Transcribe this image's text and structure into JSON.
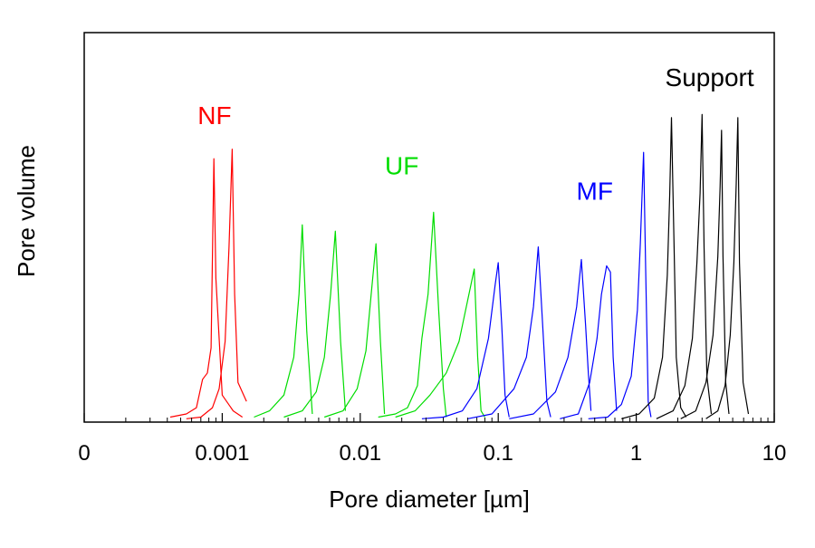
{
  "chart_data": {
    "type": "line",
    "title": "",
    "xlabel": "Pore diameter  [µm]",
    "ylabel": "Pore volume",
    "x_scale": "log",
    "xlim": [
      0.0001,
      10
    ],
    "ylim": [
      0,
      1
    ],
    "grid": false,
    "legend": "none",
    "x_ticks": [
      {
        "value": 0.0001,
        "label": "0"
      },
      {
        "value": 0.001,
        "label": "0.001"
      },
      {
        "value": 0.01,
        "label": "0.01"
      },
      {
        "value": 0.1,
        "label": "0.1"
      },
      {
        "value": 1,
        "label": "1"
      },
      {
        "value": 10,
        "label": "10"
      }
    ],
    "annotations": [
      {
        "text": "NF",
        "x": 0.00088,
        "y": 0.94,
        "color": "#ff0000"
      },
      {
        "text": "UF",
        "x": 0.02,
        "y": 0.78,
        "color": "#00dd00"
      },
      {
        "text": "MF",
        "x": 0.5,
        "y": 0.7,
        "color": "#0000ff"
      },
      {
        "text": "Support",
        "x": 3.4,
        "y": 1.06,
        "color": "#000000"
      }
    ],
    "series": [
      {
        "group": "NF",
        "color": "#ff0000",
        "points": [
          [
            0.00042,
            0.01
          ],
          [
            0.00055,
            0.02
          ],
          [
            0.00065,
            0.04
          ],
          [
            0.00072,
            0.13
          ],
          [
            0.00078,
            0.15
          ],
          [
            0.00083,
            0.23
          ],
          [
            0.00087,
            0.83
          ],
          [
            0.0009,
            0.45
          ],
          [
            0.001,
            0.08
          ],
          [
            0.0012,
            0.03
          ],
          [
            0.0014,
            0.01
          ]
        ]
      },
      {
        "group": "NF",
        "color": "#ff0000",
        "points": [
          [
            0.00055,
            0.005
          ],
          [
            0.0007,
            0.01
          ],
          [
            0.00085,
            0.04
          ],
          [
            0.00095,
            0.1
          ],
          [
            0.00105,
            0.25
          ],
          [
            0.00112,
            0.55
          ],
          [
            0.00118,
            0.86
          ],
          [
            0.00123,
            0.4
          ],
          [
            0.0013,
            0.12
          ],
          [
            0.0015,
            0.06
          ]
        ]
      },
      {
        "group": "UF",
        "color": "#00dd00",
        "points": [
          [
            0.0017,
            0.01
          ],
          [
            0.0022,
            0.03
          ],
          [
            0.0028,
            0.08
          ],
          [
            0.0033,
            0.2
          ],
          [
            0.0036,
            0.4
          ],
          [
            0.0038,
            0.62
          ],
          [
            0.0041,
            0.28
          ],
          [
            0.0045,
            0.02
          ]
        ]
      },
      {
        "group": "UF",
        "color": "#00dd00",
        "points": [
          [
            0.0028,
            0.01
          ],
          [
            0.0038,
            0.03
          ],
          [
            0.0048,
            0.09
          ],
          [
            0.0055,
            0.2
          ],
          [
            0.0061,
            0.4
          ],
          [
            0.0066,
            0.6
          ],
          [
            0.0072,
            0.25
          ],
          [
            0.0078,
            0.03
          ]
        ]
      },
      {
        "group": "UF",
        "color": "#00dd00",
        "points": [
          [
            0.0055,
            0.01
          ],
          [
            0.0075,
            0.03
          ],
          [
            0.0095,
            0.1
          ],
          [
            0.011,
            0.22
          ],
          [
            0.012,
            0.4
          ],
          [
            0.013,
            0.56
          ],
          [
            0.014,
            0.25
          ],
          [
            0.015,
            0.02
          ]
        ]
      },
      {
        "group": "UF",
        "color": "#00dd00",
        "points": [
          [
            0.0135,
            0.01
          ],
          [
            0.018,
            0.02
          ],
          [
            0.022,
            0.04
          ],
          [
            0.026,
            0.11
          ],
          [
            0.028,
            0.26
          ],
          [
            0.031,
            0.4
          ],
          [
            0.034,
            0.66
          ],
          [
            0.037,
            0.35
          ],
          [
            0.04,
            0.1
          ],
          [
            0.042,
            0.01
          ]
        ]
      },
      {
        "group": "UF",
        "color": "#00dd00",
        "points": [
          [
            0.018,
            0.01
          ],
          [
            0.025,
            0.03
          ],
          [
            0.032,
            0.08
          ],
          [
            0.042,
            0.15
          ],
          [
            0.052,
            0.25
          ],
          [
            0.06,
            0.38
          ],
          [
            0.067,
            0.48
          ],
          [
            0.071,
            0.2
          ],
          [
            0.075,
            0.03
          ],
          [
            0.08,
            0.01
          ]
        ]
      },
      {
        "group": "MF",
        "color": "#0000ff",
        "points": [
          [
            0.028,
            0.005
          ],
          [
            0.04,
            0.01
          ],
          [
            0.055,
            0.03
          ],
          [
            0.07,
            0.1
          ],
          [
            0.085,
            0.26
          ],
          [
            0.095,
            0.43
          ],
          [
            0.1,
            0.5
          ],
          [
            0.106,
            0.3
          ],
          [
            0.112,
            0.08
          ],
          [
            0.12,
            0.01
          ]
        ]
      },
      {
        "group": "MF",
        "color": "#0000ff",
        "points": [
          [
            0.06,
            0.005
          ],
          [
            0.09,
            0.02
          ],
          [
            0.13,
            0.1
          ],
          [
            0.16,
            0.2
          ],
          [
            0.18,
            0.36
          ],
          [
            0.195,
            0.55
          ],
          [
            0.21,
            0.3
          ],
          [
            0.225,
            0.06
          ],
          [
            0.24,
            0.01
          ]
        ]
      },
      {
        "group": "MF",
        "color": "#0000ff",
        "points": [
          [
            0.12,
            0.005
          ],
          [
            0.18,
            0.02
          ],
          [
            0.26,
            0.09
          ],
          [
            0.32,
            0.2
          ],
          [
            0.37,
            0.36
          ],
          [
            0.4,
            0.51
          ],
          [
            0.43,
            0.3
          ],
          [
            0.45,
            0.15
          ],
          [
            0.47,
            0.03
          ]
        ]
      },
      {
        "group": "MF",
        "color": "#0000ff",
        "points": [
          [
            0.28,
            0.005
          ],
          [
            0.38,
            0.02
          ],
          [
            0.46,
            0.12
          ],
          [
            0.52,
            0.26
          ],
          [
            0.56,
            0.4
          ],
          [
            0.61,
            0.49
          ],
          [
            0.65,
            0.47
          ],
          [
            0.68,
            0.2
          ],
          [
            0.72,
            0.03
          ]
        ]
      },
      {
        "group": "MF",
        "color": "#0000ff",
        "points": [
          [
            0.45,
            0.005
          ],
          [
            0.62,
            0.01
          ],
          [
            0.78,
            0.05
          ],
          [
            0.92,
            0.14
          ],
          [
            1.02,
            0.35
          ],
          [
            1.07,
            0.56
          ],
          [
            1.13,
            0.85
          ],
          [
            1.17,
            0.48
          ],
          [
            1.22,
            0.06
          ],
          [
            1.28,
            0.01
          ]
        ]
      },
      {
        "group": "Support",
        "color": "#000000",
        "points": [
          [
            0.78,
            0.005
          ],
          [
            1.05,
            0.02
          ],
          [
            1.35,
            0.07
          ],
          [
            1.55,
            0.2
          ],
          [
            1.68,
            0.46
          ],
          [
            1.75,
            0.72
          ],
          [
            1.8,
            0.96
          ],
          [
            1.88,
            0.55
          ],
          [
            1.95,
            0.2
          ],
          [
            2.1,
            0.04
          ],
          [
            2.3,
            0.01
          ]
        ]
      },
      {
        "group": "Support",
        "color": "#000000",
        "points": [
          [
            1.4,
            0.005
          ],
          [
            1.85,
            0.03
          ],
          [
            2.25,
            0.11
          ],
          [
            2.55,
            0.26
          ],
          [
            2.75,
            0.5
          ],
          [
            2.9,
            0.72
          ],
          [
            3.0,
            0.97
          ],
          [
            3.1,
            0.55
          ],
          [
            3.25,
            0.14
          ],
          [
            3.5,
            0.02
          ]
        ]
      },
      {
        "group": "Support",
        "color": "#000000",
        "points": [
          [
            2.1,
            0.005
          ],
          [
            2.7,
            0.03
          ],
          [
            3.2,
            0.12
          ],
          [
            3.6,
            0.27
          ],
          [
            3.9,
            0.52
          ],
          [
            4.05,
            0.74
          ],
          [
            4.15,
            0.92
          ],
          [
            4.25,
            0.52
          ],
          [
            4.45,
            0.12
          ],
          [
            4.7,
            0.02
          ]
        ]
      },
      {
        "group": "Support",
        "color": "#000000",
        "points": [
          [
            3.2,
            0.005
          ],
          [
            3.9,
            0.03
          ],
          [
            4.4,
            0.11
          ],
          [
            4.8,
            0.27
          ],
          [
            5.1,
            0.5
          ],
          [
            5.3,
            0.75
          ],
          [
            5.45,
            0.96
          ],
          [
            5.6,
            0.5
          ],
          [
            5.95,
            0.12
          ],
          [
            6.5,
            0.02
          ]
        ]
      }
    ]
  }
}
